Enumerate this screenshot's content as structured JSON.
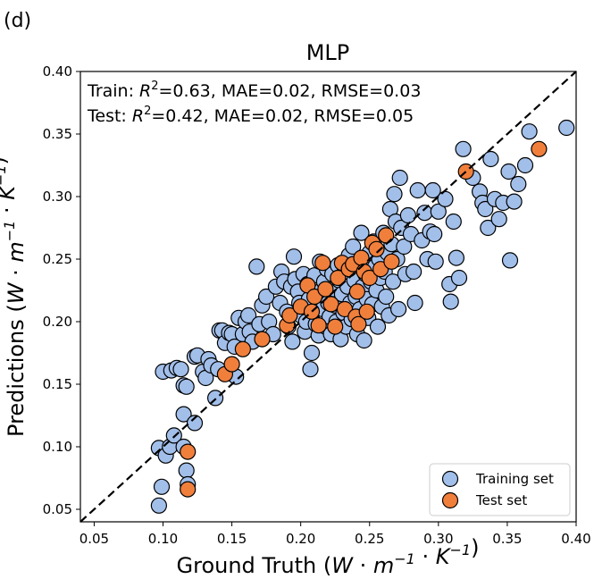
{
  "panel_label": "(d)",
  "chart_data": {
    "type": "scatter",
    "title": "MLP",
    "xlabel_main": "Ground Truth",
    "ylabel_main": "Predictions",
    "unit_label": "(W · m⁻¹ · K⁻¹)",
    "xlim": [
      0.04,
      0.4
    ],
    "ylim": [
      0.04,
      0.4
    ],
    "xticks": [
      "0.05",
      "0.10",
      "0.15",
      "0.20",
      "0.25",
      "0.30",
      "0.35",
      "0.40"
    ],
    "yticks": [
      "0.05",
      "0.10",
      "0.15",
      "0.20",
      "0.25",
      "0.30",
      "0.35",
      "0.40"
    ],
    "grid": false,
    "identity_line": true,
    "annotations": [
      "Train: R²=0.63, MAE=0.02, RMSE=0.03",
      "Test: R²=0.42, MAE=0.02, RMSE=0.05"
    ],
    "legend_position": "bottom-right",
    "series": [
      {
        "name": "Training set",
        "color": "#a2bfea",
        "points": [
          [
            0.097,
            0.053
          ],
          [
            0.099,
            0.068
          ],
          [
            0.097,
            0.099
          ],
          [
            0.102,
            0.093
          ],
          [
            0.105,
            0.1
          ],
          [
            0.1,
            0.16
          ],
          [
            0.106,
            0.161
          ],
          [
            0.108,
            0.109
          ],
          [
            0.11,
            0.163
          ],
          [
            0.113,
            0.162
          ],
          [
            0.115,
            0.149
          ],
          [
            0.115,
            0.126
          ],
          [
            0.117,
            0.148
          ],
          [
            0.117,
            0.081
          ],
          [
            0.118,
            0.07
          ],
          [
            0.115,
            0.1
          ],
          [
            0.123,
            0.119
          ],
          [
            0.123,
            0.172
          ],
          [
            0.125,
            0.173
          ],
          [
            0.129,
            0.16
          ],
          [
            0.131,
            0.155
          ],
          [
            0.133,
            0.17
          ],
          [
            0.135,
            0.165
          ],
          [
            0.138,
            0.139
          ],
          [
            0.14,
            0.162
          ],
          [
            0.141,
            0.193
          ],
          [
            0.143,
            0.193
          ],
          [
            0.145,
            0.183
          ],
          [
            0.148,
            0.191
          ],
          [
            0.15,
            0.19
          ],
          [
            0.152,
            0.18
          ],
          [
            0.153,
            0.156
          ],
          [
            0.155,
            0.203
          ],
          [
            0.158,
            0.19
          ],
          [
            0.16,
            0.2
          ],
          [
            0.162,
            0.205
          ],
          [
            0.163,
            0.192
          ],
          [
            0.165,
            0.184
          ],
          [
            0.168,
            0.244
          ],
          [
            0.17,
            0.198
          ],
          [
            0.172,
            0.213
          ],
          [
            0.175,
            0.22
          ],
          [
            0.177,
            0.2
          ],
          [
            0.18,
            0.19
          ],
          [
            0.182,
            0.228
          ],
          [
            0.185,
            0.215
          ],
          [
            0.186,
            0.24
          ],
          [
            0.188,
            0.232
          ],
          [
            0.19,
            0.208
          ],
          [
            0.191,
            0.196
          ],
          [
            0.193,
            0.228
          ],
          [
            0.194,
            0.184
          ],
          [
            0.195,
            0.252
          ],
          [
            0.196,
            0.234
          ],
          [
            0.198,
            0.224
          ],
          [
            0.199,
            0.215
          ],
          [
            0.2,
            0.205
          ],
          [
            0.202,
            0.238
          ],
          [
            0.203,
            0.192
          ],
          [
            0.204,
            0.2
          ],
          [
            0.205,
            0.23
          ],
          [
            0.206,
            0.218
          ],
          [
            0.207,
            0.162
          ],
          [
            0.208,
            0.175
          ],
          [
            0.209,
            0.208
          ],
          [
            0.21,
            0.237
          ],
          [
            0.211,
            0.198
          ],
          [
            0.212,
            0.22
          ],
          [
            0.213,
            0.189
          ],
          [
            0.214,
            0.248
          ],
          [
            0.215,
            0.225
          ],
          [
            0.216,
            0.21
          ],
          [
            0.217,
            0.232
          ],
          [
            0.218,
            0.196
          ],
          [
            0.219,
            0.242
          ],
          [
            0.22,
            0.215
          ],
          [
            0.221,
            0.204
          ],
          [
            0.222,
            0.19
          ],
          [
            0.223,
            0.238
          ],
          [
            0.224,
            0.226
          ],
          [
            0.225,
            0.213
          ],
          [
            0.226,
            0.2
          ],
          [
            0.227,
            0.245
          ],
          [
            0.228,
            0.233
          ],
          [
            0.229,
            0.186
          ],
          [
            0.23,
            0.222
          ],
          [
            0.231,
            0.207
          ],
          [
            0.232,
            0.24
          ],
          [
            0.233,
            0.196
          ],
          [
            0.234,
            0.228
          ],
          [
            0.235,
            0.253
          ],
          [
            0.236,
            0.215
          ],
          [
            0.237,
            0.202
          ],
          [
            0.238,
            0.26
          ],
          [
            0.239,
            0.233
          ],
          [
            0.24,
            0.22
          ],
          [
            0.241,
            0.19
          ],
          [
            0.242,
            0.247
          ],
          [
            0.243,
            0.21
          ],
          [
            0.244,
            0.271
          ],
          [
            0.245,
            0.228
          ],
          [
            0.246,
            0.185
          ],
          [
            0.247,
            0.238
          ],
          [
            0.248,
            0.218
          ],
          [
            0.249,
            0.203
          ],
          [
            0.25,
            0.255
          ],
          [
            0.251,
            0.232
          ],
          [
            0.252,
            0.214
          ],
          [
            0.253,
            0.264
          ],
          [
            0.254,
            0.244
          ],
          [
            0.255,
            0.225
          ],
          [
            0.256,
            0.196
          ],
          [
            0.257,
            0.25
          ],
          [
            0.258,
            0.235
          ],
          [
            0.259,
            0.212
          ],
          [
            0.26,
            0.271
          ],
          [
            0.261,
            0.24
          ],
          [
            0.262,
            0.22
          ],
          [
            0.263,
            0.255
          ],
          [
            0.264,
            0.205
          ],
          [
            0.265,
            0.29
          ],
          [
            0.266,
            0.262
          ],
          [
            0.267,
            0.232
          ],
          [
            0.268,
            0.302
          ],
          [
            0.269,
            0.28
          ],
          [
            0.27,
            0.25
          ],
          [
            0.271,
            0.21
          ],
          [
            0.272,
            0.315
          ],
          [
            0.273,
            0.275
          ],
          [
            0.275,
            0.26
          ],
          [
            0.276,
            0.238
          ],
          [
            0.278,
            0.285
          ],
          [
            0.28,
            0.27
          ],
          [
            0.282,
            0.24
          ],
          [
            0.283,
            0.215
          ],
          [
            0.285,
            0.305
          ],
          [
            0.288,
            0.265
          ],
          [
            0.29,
            0.287
          ],
          [
            0.292,
            0.25
          ],
          [
            0.294,
            0.272
          ],
          [
            0.296,
            0.305
          ],
          [
            0.297,
            0.27
          ],
          [
            0.298,
            0.248
          ],
          [
            0.3,
            0.288
          ],
          [
            0.305,
            0.298
          ],
          [
            0.308,
            0.23
          ],
          [
            0.309,
            0.216
          ],
          [
            0.311,
            0.28
          ],
          [
            0.313,
            0.251
          ],
          [
            0.315,
            0.235
          ],
          [
            0.318,
            0.338
          ],
          [
            0.325,
            0.315
          ],
          [
            0.33,
            0.304
          ],
          [
            0.332,
            0.295
          ],
          [
            0.334,
            0.29
          ],
          [
            0.336,
            0.275
          ],
          [
            0.338,
            0.33
          ],
          [
            0.341,
            0.298
          ],
          [
            0.344,
            0.282
          ],
          [
            0.347,
            0.295
          ],
          [
            0.351,
            0.32
          ],
          [
            0.352,
            0.249
          ],
          [
            0.355,
            0.296
          ],
          [
            0.358,
            0.31
          ],
          [
            0.363,
            0.325
          ],
          [
            0.366,
            0.352
          ],
          [
            0.393,
            0.355
          ]
        ]
      },
      {
        "name": "Test set",
        "color": "#f07f3c",
        "points": [
          [
            0.118,
            0.096
          ],
          [
            0.118,
            0.066
          ],
          [
            0.145,
            0.158
          ],
          [
            0.15,
            0.166
          ],
          [
            0.158,
            0.178
          ],
          [
            0.172,
            0.186
          ],
          [
            0.19,
            0.197
          ],
          [
            0.192,
            0.205
          ],
          [
            0.2,
            0.212
          ],
          [
            0.205,
            0.229
          ],
          [
            0.208,
            0.208
          ],
          [
            0.21,
            0.22
          ],
          [
            0.213,
            0.197
          ],
          [
            0.216,
            0.247
          ],
          [
            0.218,
            0.226
          ],
          [
            0.222,
            0.214
          ],
          [
            0.225,
            0.196
          ],
          [
            0.227,
            0.235
          ],
          [
            0.23,
            0.247
          ],
          [
            0.232,
            0.21
          ],
          [
            0.235,
            0.242
          ],
          [
            0.238,
            0.246
          ],
          [
            0.24,
            0.204
          ],
          [
            0.241,
            0.224
          ],
          [
            0.242,
            0.198
          ],
          [
            0.244,
            0.251
          ],
          [
            0.246,
            0.24
          ],
          [
            0.248,
            0.208
          ],
          [
            0.25,
            0.235
          ],
          [
            0.252,
            0.263
          ],
          [
            0.255,
            0.258
          ],
          [
            0.258,
            0.242
          ],
          [
            0.262,
            0.269
          ],
          [
            0.266,
            0.248
          ],
          [
            0.32,
            0.32
          ],
          [
            0.373,
            0.338
          ]
        ]
      }
    ]
  }
}
